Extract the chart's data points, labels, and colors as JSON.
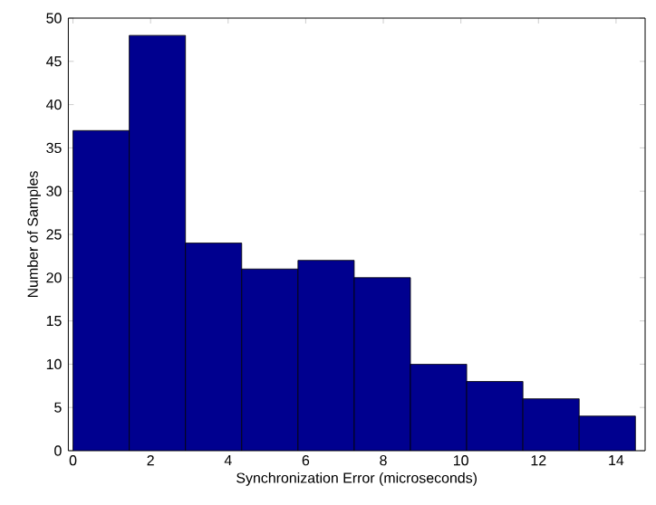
{
  "chart_data": {
    "type": "histogram",
    "xlabel": "Synchronization Error (microseconds)",
    "ylabel": "Number of Samples",
    "bins": [
      0,
      1.45,
      2.9,
      4.35,
      5.8,
      7.25,
      8.7,
      10.15,
      11.6,
      13.05,
      14.5
    ],
    "values": [
      37,
      48,
      24,
      21,
      22,
      20,
      10,
      8,
      6,
      4
    ],
    "color": "#00008f",
    "xlim": [
      -0.12,
      14.75
    ],
    "ylim": [
      0,
      50
    ],
    "xticks": [
      0,
      2,
      4,
      6,
      8,
      10,
      12,
      14
    ],
    "yticks": [
      0,
      5,
      10,
      15,
      20,
      25,
      30,
      35,
      40,
      45,
      50
    ]
  }
}
